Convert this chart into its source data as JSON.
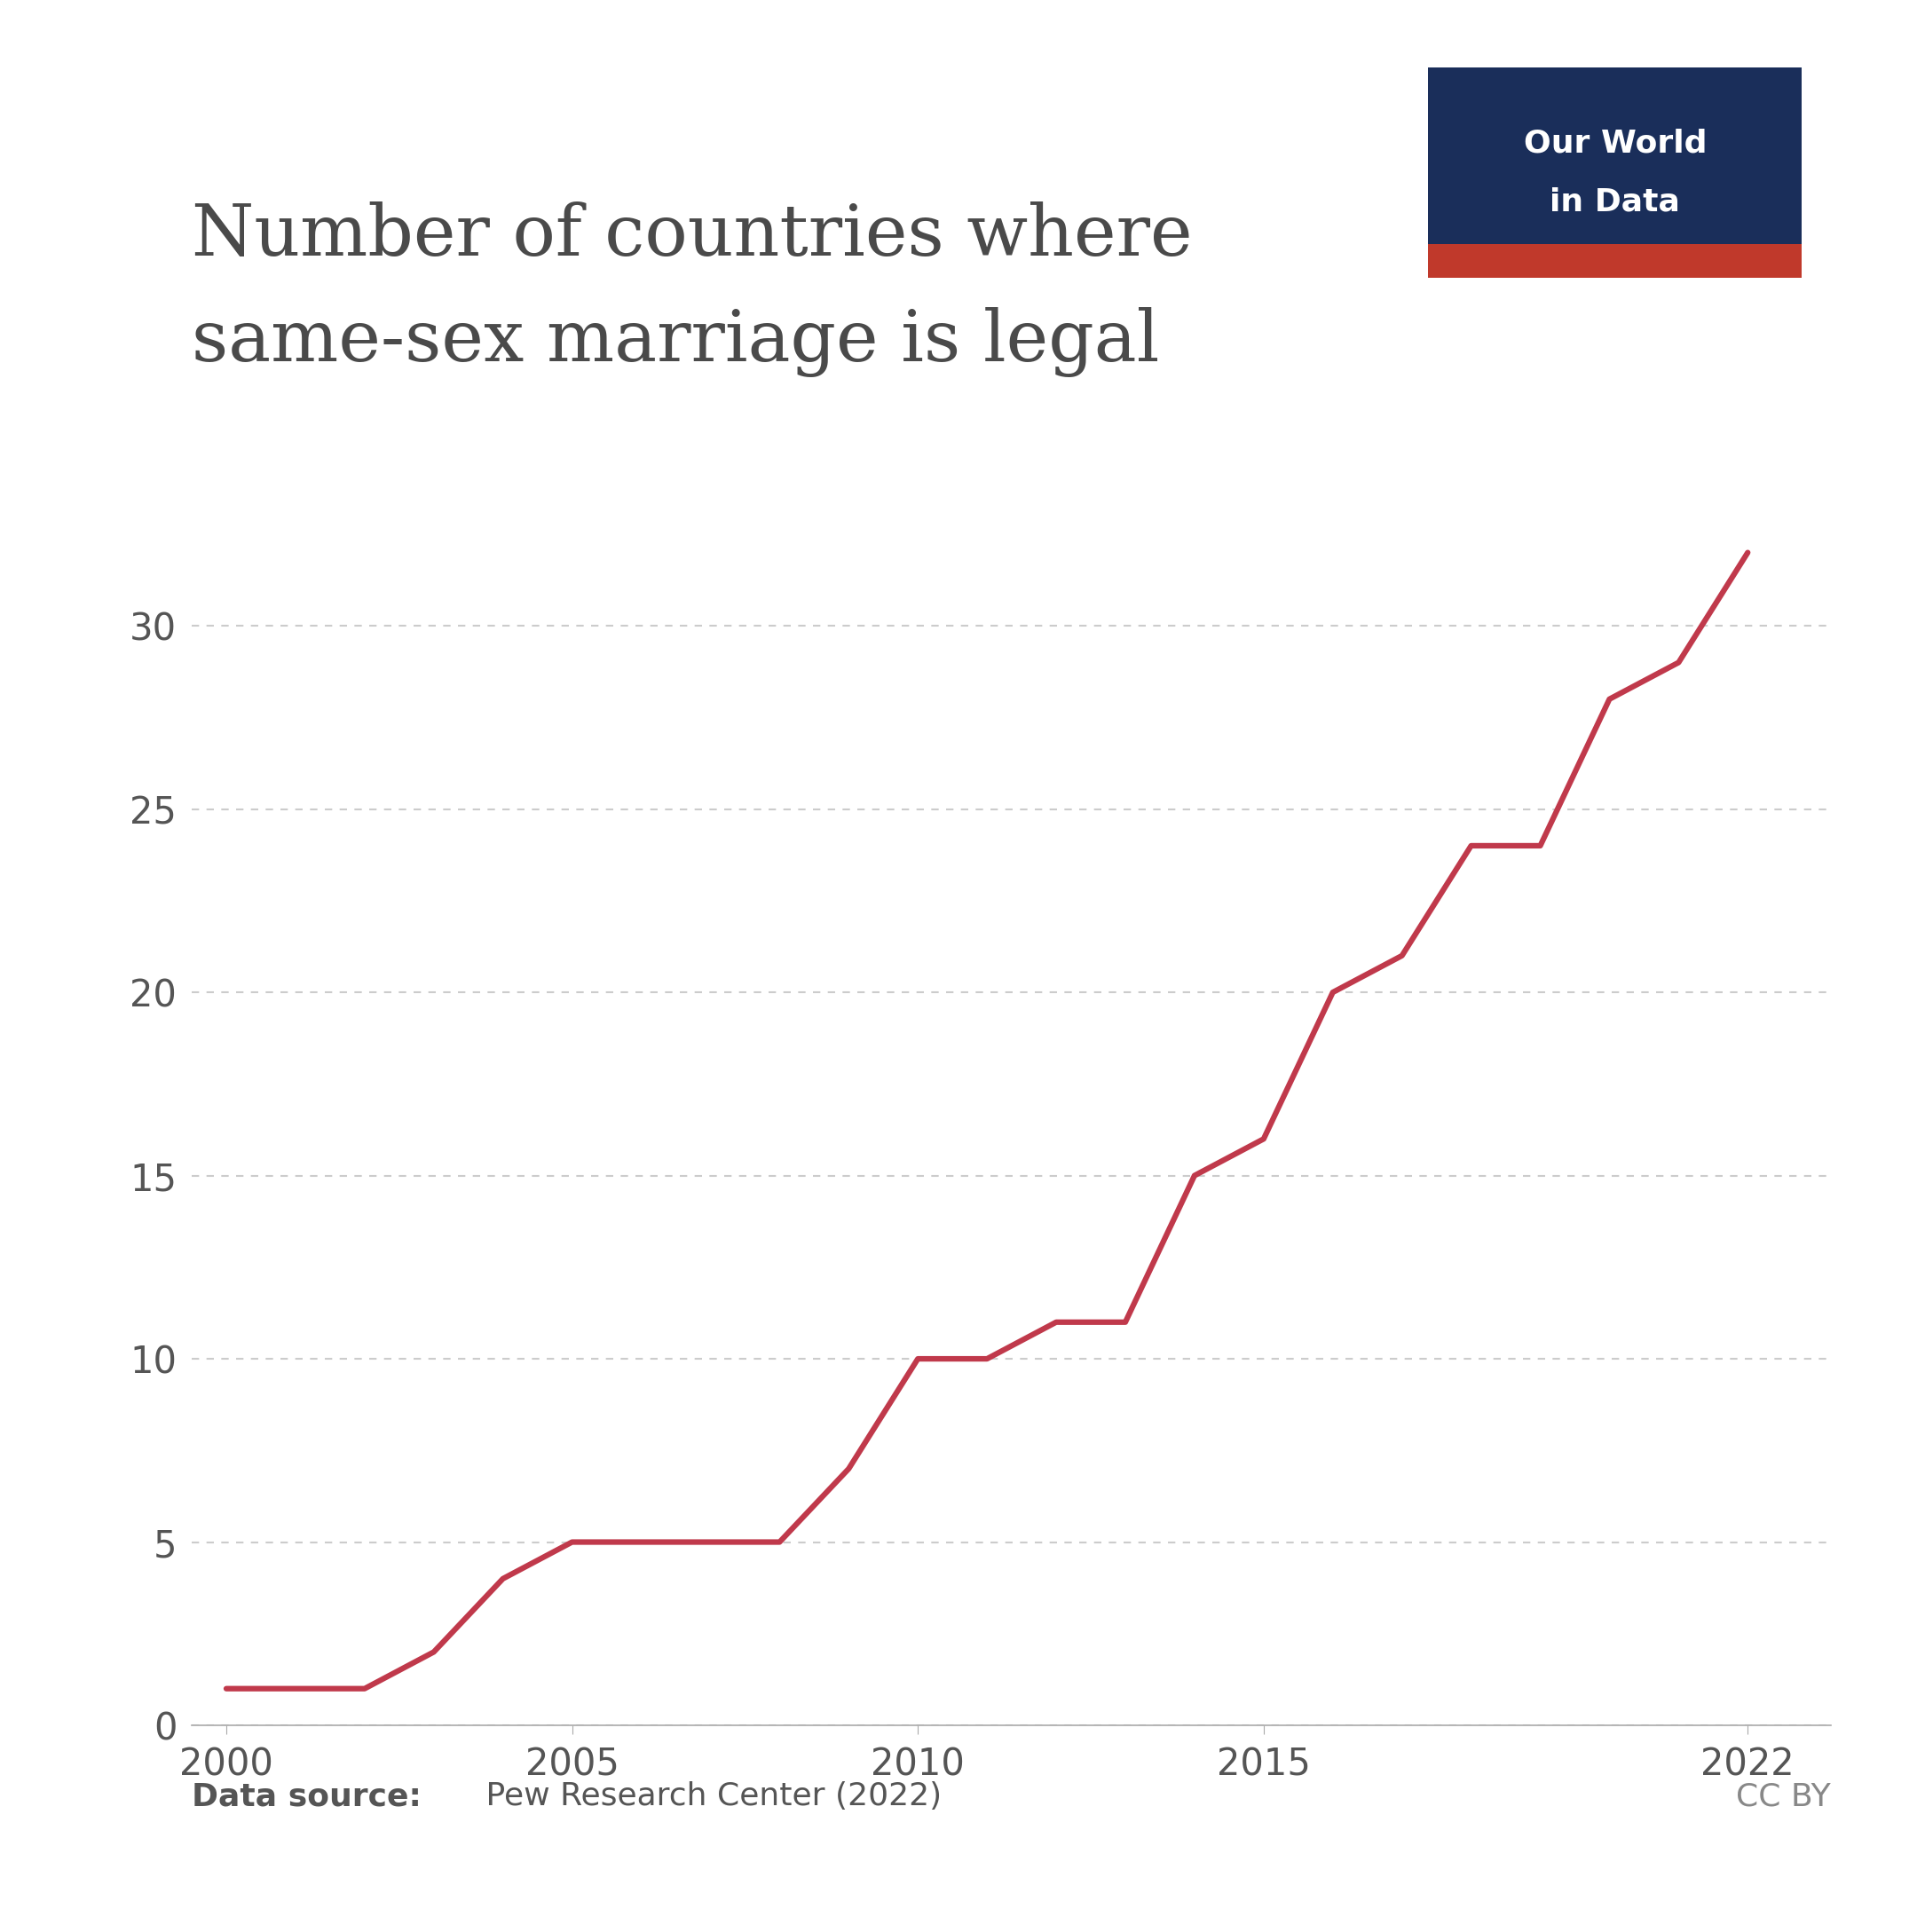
{
  "title_line1": "Number of countries where",
  "title_line2": "same-sex marriage is legal",
  "years": [
    2000,
    2001,
    2002,
    2003,
    2004,
    2005,
    2006,
    2007,
    2008,
    2009,
    2010,
    2011,
    2012,
    2013,
    2014,
    2015,
    2016,
    2017,
    2018,
    2019,
    2020,
    2021,
    2022
  ],
  "values": [
    1,
    1,
    1,
    2,
    4,
    5,
    5,
    5,
    5,
    7,
    10,
    10,
    11,
    11,
    15,
    16,
    20,
    21,
    24,
    24,
    28,
    29,
    32
  ],
  "line_color": "#c0394b",
  "line_width": 4.5,
  "background_color": "#ffffff",
  "grid_color": "#cccccc",
  "yticks": [
    0,
    5,
    10,
    15,
    20,
    25,
    30
  ],
  "xticks": [
    2000,
    2005,
    2010,
    2015,
    2022
  ],
  "ylim": [
    0,
    34
  ],
  "xlim": [
    1999.5,
    2023.2
  ],
  "data_source_bold": "Data source:",
  "data_source_normal": " Pew Research Center (2022)",
  "cc_by": "CC BY",
  "logo_bg_color": "#1a2e5a",
  "logo_red_color": "#c0392b",
  "logo_text_line1": "Our World",
  "logo_text_line2": "in Data",
  "title_fontsize": 58,
  "axis_tick_fontsize": 30,
  "source_fontsize": 26,
  "logo_fontsize": 26,
  "title_color": "#4a4a4a",
  "tick_color": "#555555",
  "source_color": "#555555",
  "cc_color": "#888888"
}
